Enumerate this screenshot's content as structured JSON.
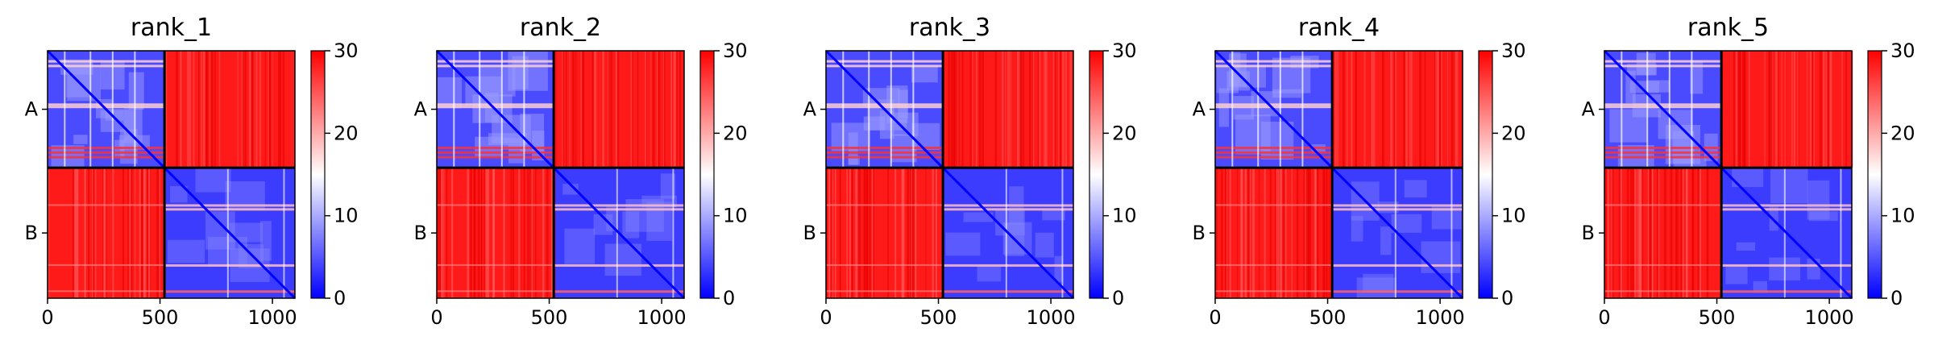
{
  "chart_data": {
    "type": "heatmap",
    "panels": [
      {
        "title": "rank_1"
      },
      {
        "title": "rank_2"
      },
      {
        "title": "rank_3"
      },
      {
        "title": "rank_4"
      },
      {
        "title": "rank_5"
      }
    ],
    "x_range": [
      0,
      1100
    ],
    "x_ticks": [
      {
        "value": 0,
        "label": "0"
      },
      {
        "value": 500,
        "label": "500"
      },
      {
        "value": 1000,
        "label": "1000"
      }
    ],
    "chain_boundary": 520,
    "row_labels": [
      {
        "label": "A",
        "value": 260
      },
      {
        "label": "B",
        "value": 810
      }
    ],
    "colorbar": {
      "range": [
        0,
        30
      ],
      "ticks": [
        {
          "value": 0,
          "label": "0"
        },
        {
          "value": 10,
          "label": "10"
        },
        {
          "value": 20,
          "label": "20"
        },
        {
          "value": 30,
          "label": "30"
        }
      ],
      "colors": [
        "#0000ff",
        "#ffffff",
        "#ff0000"
      ]
    },
    "colors": {
      "low": "#0000ff",
      "mid": "#ffffff",
      "high": "#ff0000",
      "boundary": "#000000"
    }
  }
}
